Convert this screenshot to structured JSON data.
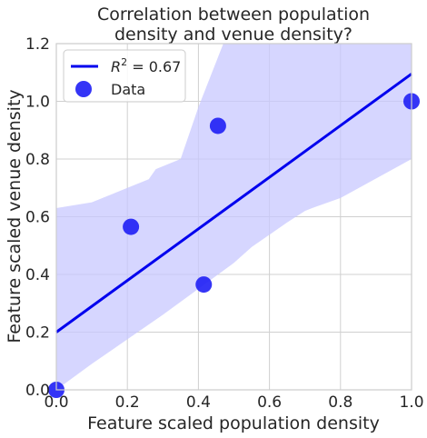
{
  "chart_data": {
    "type": "scatter",
    "title_lines": [
      "Correlation between population",
      "density and venue density?"
    ],
    "xlabel": "Feature scaled population density",
    "ylabel": "Feature scaled venue density",
    "xlim": [
      0,
      1
    ],
    "ylim": [
      0,
      1.2
    ],
    "xticks": [
      0,
      0.2,
      0.4,
      0.6,
      0.8,
      1.0
    ],
    "xtick_labels": [
      "0.0",
      "0.2",
      "0.4",
      "0.6",
      "0.8",
      "1.0"
    ],
    "yticks": [
      0,
      0.2,
      0.4,
      0.6,
      0.8,
      1.0,
      1.2
    ],
    "ytick_labels": [
      "0.0",
      "0.2",
      "0.4",
      "0.6",
      "0.8",
      "1.0",
      "1.2"
    ],
    "grid": true,
    "legend_position": "top-left",
    "series": [
      {
        "name": "Data",
        "kind": "scatter",
        "color": "#1f1ff5",
        "points": [
          {
            "x": 0.0,
            "y": 0.0
          },
          {
            "x": 0.21,
            "y": 0.565
          },
          {
            "x": 0.415,
            "y": 0.365
          },
          {
            "x": 0.455,
            "y": 0.915
          },
          {
            "x": 1.0,
            "y": 1.0
          }
        ]
      },
      {
        "name": "R^2 = 0.67",
        "kind": "line",
        "color": "#0000ee",
        "points": [
          {
            "x": 0.0,
            "y": 0.2
          },
          {
            "x": 1.0,
            "y": 1.095
          }
        ]
      }
    ],
    "confidence_band": {
      "color": "#c8c8ff",
      "upper": [
        {
          "x": 0.0,
          "y": 0.63
        },
        {
          "x": 0.1,
          "y": 0.65
        },
        {
          "x": 0.2,
          "y": 0.7
        },
        {
          "x": 0.26,
          "y": 0.73
        },
        {
          "x": 0.28,
          "y": 0.765
        },
        {
          "x": 0.35,
          "y": 0.8
        },
        {
          "x": 0.4,
          "y": 0.98
        },
        {
          "x": 0.47,
          "y": 1.2
        },
        {
          "x": 1.0,
          "y": 1.2
        }
      ],
      "lower": [
        {
          "x": 1.0,
          "y": 0.8
        },
        {
          "x": 0.8,
          "y": 0.665
        },
        {
          "x": 0.72,
          "y": 0.63
        },
        {
          "x": 0.7,
          "y": 0.62
        },
        {
          "x": 0.65,
          "y": 0.58
        },
        {
          "x": 0.55,
          "y": 0.495
        },
        {
          "x": 0.5,
          "y": 0.44
        },
        {
          "x": 0.3,
          "y": 0.26
        },
        {
          "x": 0.1,
          "y": 0.09
        },
        {
          "x": 0.0,
          "y": -0.05
        }
      ]
    },
    "legend": {
      "line_label_prefix": "R",
      "line_label_sup": "2",
      "line_label_suffix": " = 0.67",
      "scatter_label": "Data"
    }
  }
}
